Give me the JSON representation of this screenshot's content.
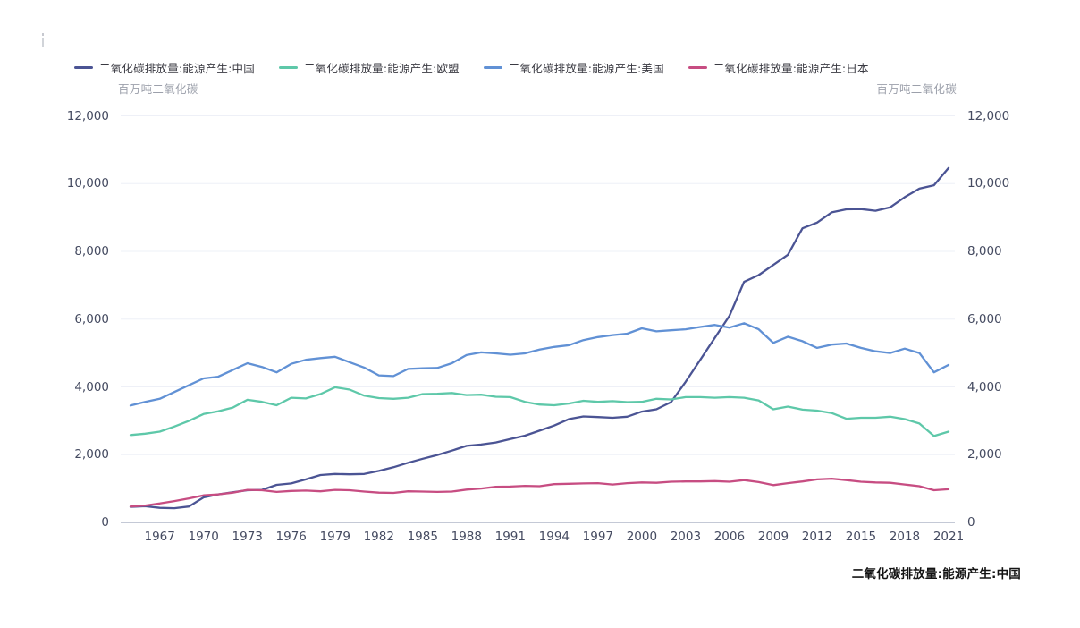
{
  "page": {
    "background": "#ffffff"
  },
  "legend": {
    "items": [
      {
        "label": "二氧化碳排放量:能源产生:中国",
        "color": "#4b5494"
      },
      {
        "label": "二氧化碳排放量:能源产生:欧盟",
        "color": "#5ec8a9"
      },
      {
        "label": "二氧化碳排放量:能源产生:美国",
        "color": "#6191d5"
      },
      {
        "label": "二氧化碳排放量:能源产生:日本",
        "color": "#c74d82"
      }
    ]
  },
  "axis_units": {
    "left": "百万吨二氧化碳",
    "right": "百万吨二氧化碳"
  },
  "footer": {
    "caption": "二氧化碳排放量:能源产生:中国"
  },
  "colors": {
    "gridline": "#eef0f7",
    "baseline": "#8a93ad",
    "tick_text": "#454b61",
    "unit_text": "#9ca0ab"
  },
  "chart_data": {
    "type": "line",
    "title": "",
    "ylabel": "百万吨二氧化碳",
    "ylim": [
      0,
      12000
    ],
    "grid": true,
    "legend_position": "top",
    "x_start": 1965,
    "x_end": 2021,
    "x_tick_labels": [
      "1967",
      "1970",
      "1973",
      "1976",
      "1979",
      "1982",
      "1985",
      "1988",
      "1991",
      "1994",
      "1997",
      "2000",
      "2003",
      "2006",
      "2009",
      "2012",
      "2015",
      "2018",
      "2021"
    ],
    "y_ticks": [
      0,
      2000,
      4000,
      6000,
      8000,
      10000,
      12000
    ],
    "y_tick_labels": [
      "0",
      "2,000",
      "4,000",
      "6,000",
      "8,000",
      "10,000",
      "12,000"
    ],
    "x": [
      1965,
      1966,
      1967,
      1968,
      1969,
      1970,
      1971,
      1972,
      1973,
      1974,
      1975,
      1976,
      1977,
      1978,
      1979,
      1980,
      1981,
      1982,
      1983,
      1984,
      1985,
      1986,
      1987,
      1988,
      1989,
      1990,
      1991,
      1992,
      1993,
      1994,
      1995,
      1996,
      1997,
      1998,
      1999,
      2000,
      2001,
      2002,
      2003,
      2004,
      2005,
      2006,
      2007,
      2008,
      2009,
      2010,
      2011,
      2012,
      2013,
      2014,
      2015,
      2016,
      2017,
      2018,
      2019,
      2020,
      2021
    ],
    "series": [
      {
        "name": "二氧化碳排放量:能源产生:中国",
        "color": "#4b5494",
        "values": [
          460,
          480,
          430,
          420,
          470,
          740,
          830,
          890,
          950,
          960,
          1110,
          1150,
          1270,
          1400,
          1430,
          1420,
          1430,
          1520,
          1630,
          1760,
          1880,
          1990,
          2120,
          2260,
          2300,
          2360,
          2460,
          2560,
          2710,
          2860,
          3050,
          3130,
          3110,
          3090,
          3120,
          3270,
          3340,
          3550,
          4150,
          4800,
          5450,
          6100,
          7100,
          7300,
          7600,
          7900,
          8680,
          8850,
          9150,
          9240,
          9250,
          9200,
          9300,
          9600,
          9850,
          9950,
          10460
        ]
      },
      {
        "name": "二氧化碳排放量:能源产生:欧盟",
        "color": "#5ec8a9",
        "values": [
          2580,
          2620,
          2680,
          2830,
          3000,
          3200,
          3280,
          3390,
          3620,
          3560,
          3460,
          3680,
          3660,
          3790,
          3990,
          3920,
          3740,
          3670,
          3650,
          3680,
          3790,
          3800,
          3820,
          3760,
          3770,
          3710,
          3700,
          3560,
          3480,
          3460,
          3510,
          3590,
          3560,
          3580,
          3550,
          3560,
          3650,
          3630,
          3700,
          3700,
          3680,
          3700,
          3680,
          3600,
          3340,
          3420,
          3330,
          3300,
          3230,
          3060,
          3090,
          3090,
          3120,
          3050,
          2920,
          2550,
          2680
        ]
      },
      {
        "name": "二氧化碳排放量:能源产生:美国",
        "color": "#6191d5",
        "values": [
          3450,
          3560,
          3650,
          3850,
          4050,
          4250,
          4300,
          4500,
          4700,
          4590,
          4430,
          4680,
          4800,
          4850,
          4890,
          4730,
          4570,
          4340,
          4320,
          4530,
          4550,
          4560,
          4700,
          4940,
          5020,
          4990,
          4950,
          4990,
          5100,
          5180,
          5230,
          5380,
          5470,
          5530,
          5570,
          5730,
          5640,
          5670,
          5700,
          5770,
          5830,
          5750,
          5880,
          5700,
          5300,
          5480,
          5350,
          5150,
          5250,
          5280,
          5150,
          5050,
          5000,
          5130,
          5000,
          4430,
          4650
        ]
      },
      {
        "name": "二氧化碳排放量:能源产生:日本",
        "color": "#c74d82",
        "values": [
          470,
          500,
          560,
          630,
          710,
          800,
          830,
          880,
          960,
          950,
          900,
          930,
          940,
          920,
          960,
          950,
          910,
          880,
          870,
          920,
          910,
          900,
          910,
          970,
          1000,
          1050,
          1060,
          1080,
          1070,
          1130,
          1140,
          1150,
          1160,
          1120,
          1160,
          1180,
          1170,
          1200,
          1210,
          1210,
          1220,
          1200,
          1250,
          1190,
          1100,
          1160,
          1210,
          1270,
          1290,
          1250,
          1200,
          1180,
          1170,
          1120,
          1070,
          950,
          980
        ]
      }
    ]
  }
}
